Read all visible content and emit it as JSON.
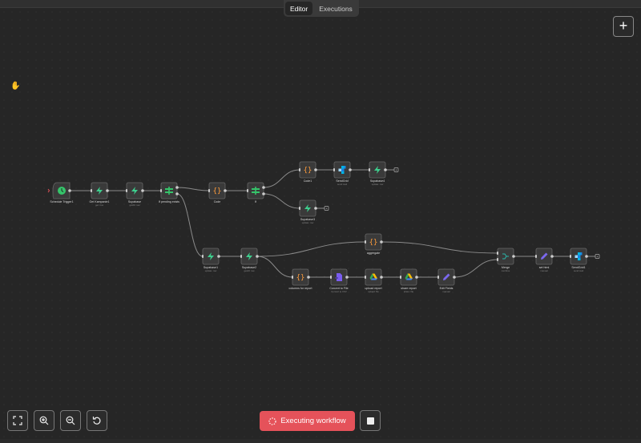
{
  "tabs": [
    {
      "label": "Editor",
      "active": true
    },
    {
      "label": "Executions",
      "active": false
    }
  ],
  "add_button": "+",
  "execute_button": {
    "label": "Executing workflow",
    "color": "#e5525a"
  },
  "controls": [
    "zoom-to-fit",
    "zoom-in",
    "zoom-out",
    "reset-zoom"
  ],
  "colors": {
    "supabase": "#3ecf8e",
    "code": "#ff9c3b",
    "if": "#35c46a",
    "sendgrid": "#1a82e2",
    "edit": "#7b68ee",
    "merge": "#2ab5a8",
    "drive": "#fbbc04",
    "trigger": "#35c46a"
  },
  "nodes": [
    {
      "id": "t",
      "name": "Schedule Trigger1",
      "sub": "",
      "icon": "clock",
      "trigger": true
    },
    {
      "id": "gk",
      "name": "Get Kampanie1",
      "sub": "get: row",
      "icon": "supabase"
    },
    {
      "id": "sb",
      "name": "Supabase",
      "sub": "getAll: row",
      "icon": "supabase"
    },
    {
      "id": "ipe",
      "name": "If pending exists",
      "sub": "",
      "icon": "if"
    },
    {
      "id": "code",
      "name": "Code",
      "sub": "",
      "icon": "code"
    },
    {
      "id": "if",
      "name": "If",
      "sub": "",
      "icon": "if"
    },
    {
      "id": "code1",
      "name": "Code1",
      "sub": "",
      "icon": "code"
    },
    {
      "id": "sg",
      "name": "SendGrid",
      "sub": "send:mail",
      "icon": "sendgrid"
    },
    {
      "id": "sb4",
      "name": "Supabase4",
      "sub": "update: row",
      "icon": "supabase"
    },
    {
      "id": "sb3",
      "name": "Supabase3",
      "sub": "update: row",
      "icon": "supabase"
    },
    {
      "id": "sb1",
      "name": "Supabase1",
      "sub": "update: row",
      "icon": "supabase"
    },
    {
      "id": "sb2",
      "name": "Supabase2",
      "sub": "getAll: row",
      "icon": "supabase"
    },
    {
      "id": "agg",
      "name": "aggregate",
      "sub": "",
      "icon": "code"
    },
    {
      "id": "cfr",
      "name": "columns for report",
      "sub": "",
      "icon": "code"
    },
    {
      "id": "ctf",
      "name": "Convert to File",
      "sub": "Convert to CSV",
      "icon": "file"
    },
    {
      "id": "ur",
      "name": "upload report",
      "sub": "upload: file",
      "icon": "drive"
    },
    {
      "id": "sr",
      "name": "share report",
      "sub": "share: file",
      "icon": "drive"
    },
    {
      "id": "ef",
      "name": "Edit Fields",
      "sub": "manual",
      "icon": "edit"
    },
    {
      "id": "mg",
      "name": "Merge",
      "sub": "combine",
      "icon": "merge"
    },
    {
      "id": "sh",
      "name": "set html",
      "sub": "manual",
      "icon": "edit"
    },
    {
      "id": "sg1",
      "name": "SendGrid1",
      "sub": "send:mail",
      "icon": "sendgrid"
    }
  ],
  "connections": [
    [
      "t",
      "gk",
      0,
      0
    ],
    [
      "gk",
      "sb",
      0,
      0
    ],
    [
      "sb",
      "ipe",
      0,
      0
    ],
    [
      "ipe",
      "code",
      0,
      0
    ],
    [
      "ipe",
      "sb1",
      1,
      0
    ],
    [
      "code",
      "if",
      0,
      0
    ],
    [
      "if",
      "code1",
      0,
      0
    ],
    [
      "if",
      "sb3",
      1,
      0
    ],
    [
      "code1",
      "sg",
      0,
      0
    ],
    [
      "sg",
      "sb4",
      0,
      0
    ],
    [
      "sb1",
      "sb2",
      0,
      0
    ],
    [
      "sb2",
      "agg",
      0,
      0
    ],
    [
      "sb2",
      "cfr",
      0,
      0
    ],
    [
      "agg",
      "mg",
      0,
      0
    ],
    [
      "cfr",
      "ctf",
      0,
      0
    ],
    [
      "ctf",
      "ur",
      0,
      0
    ],
    [
      "ur",
      "sr",
      0,
      0
    ],
    [
      "sr",
      "ef",
      0,
      0
    ],
    [
      "ef",
      "mg",
      0,
      1
    ],
    [
      "mg",
      "sh",
      0,
      0
    ],
    [
      "sh",
      "sg1",
      0,
      0
    ]
  ],
  "open_ends": [
    "sb4",
    "sb3",
    "sg1"
  ]
}
